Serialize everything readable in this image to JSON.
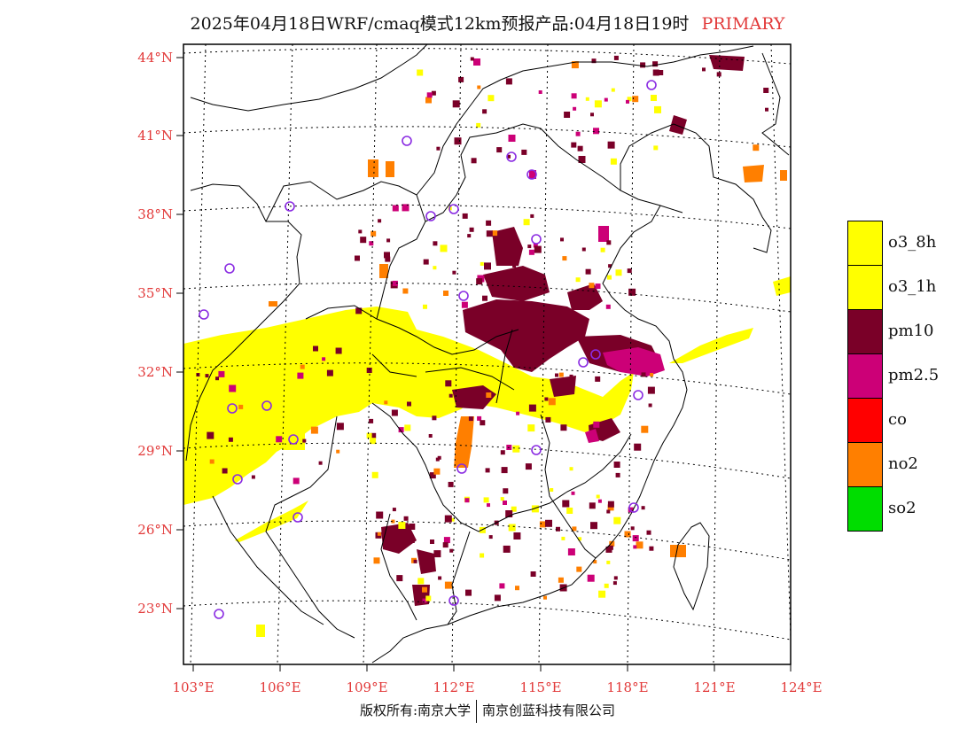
{
  "title": {
    "main": "2025年04月18日WRF/cmaq模式12km预报产品:04月18日19时",
    "tag": "PRIMARY",
    "tag_color": "#e23a3a"
  },
  "axes": {
    "lat_labels": [
      "44°N",
      "41°N",
      "38°N",
      "35°N",
      "32°N",
      "29°N",
      "26°N",
      "23°N"
    ],
    "lon_labels": [
      "103°E",
      "106°E",
      "109°E",
      "112°E",
      "115°E",
      "118°E",
      "121°E",
      "124°E"
    ],
    "label_color": "#e23a3a"
  },
  "legend": [
    {
      "label": "o3_8h",
      "color": "#ffff00"
    },
    {
      "label": "o3_1h",
      "color": "#ffff00"
    },
    {
      "label": "pm10",
      "color": "#7a0028"
    },
    {
      "label": "pm2.5",
      "color": "#cc0077"
    },
    {
      "label": "co",
      "color": "#ff0000"
    },
    {
      "label": "no2",
      "color": "#ff7f00"
    },
    {
      "label": "so2",
      "color": "#00dd00"
    }
  ],
  "footer": {
    "left": "版权所有:南京大学",
    "right": "南京创蓝科技有限公司"
  },
  "colors": {
    "o3": "#ffff00",
    "pm10": "#7a0028",
    "pm25": "#cc0077",
    "no2": "#ff7f00",
    "station": "#8a2be2",
    "border": "#000000"
  }
}
